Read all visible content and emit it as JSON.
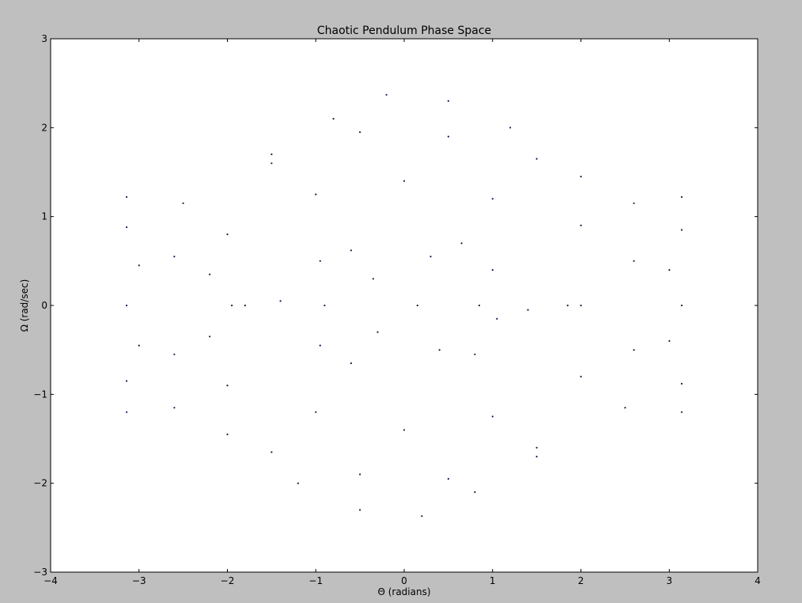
{
  "chart_data": {
    "type": "scatter",
    "title": "Chaotic Pendulum Phase Space",
    "xlabel": "Θ (radians)",
    "ylabel": "Ω (rad/sec)",
    "xlim": [
      -4,
      4
    ],
    "ylim": [
      -3,
      3
    ],
    "x_ticks": [
      -4,
      -3,
      -2,
      -1,
      0,
      1,
      2,
      3,
      4
    ],
    "y_ticks": [
      -3,
      -2,
      -1,
      0,
      1,
      2,
      3
    ],
    "x_tick_labels": [
      "−4",
      "−3",
      "−2",
      "−1",
      "0",
      "1",
      "2",
      "3",
      "4"
    ],
    "y_tick_labels": [
      "−3",
      "−2",
      "−1",
      "0",
      "1",
      "2",
      "3"
    ],
    "grid": false,
    "legend": "none",
    "series": [
      {
        "marker_color": "#1a1a4a",
        "x_range": [
          -3.1416,
          3.1416
        ],
        "y_range": [
          -2.37,
          2.37
        ],
        "points": [
          [
            -3.14,
            0.0
          ],
          [
            -3.0,
            0.45
          ],
          [
            -2.6,
            0.55
          ],
          [
            -2.2,
            0.35
          ],
          [
            -1.95,
            0.0
          ],
          [
            -2.2,
            -0.35
          ],
          [
            -2.6,
            -0.55
          ],
          [
            -3.0,
            -0.45
          ],
          [
            -3.14,
            0.88
          ],
          [
            -2.5,
            1.15
          ],
          [
            -1.5,
            1.6
          ],
          [
            -0.8,
            2.1
          ],
          [
            -0.2,
            2.37
          ],
          [
            0.5,
            2.3
          ],
          [
            1.2,
            2.0
          ],
          [
            2.0,
            1.45
          ],
          [
            2.6,
            1.15
          ],
          [
            3.14,
            0.85
          ],
          [
            -3.14,
            -0.85
          ],
          [
            -2.6,
            -1.15
          ],
          [
            -2.0,
            -1.45
          ],
          [
            -1.2,
            -2.0
          ],
          [
            -0.5,
            -2.3
          ],
          [
            0.2,
            -2.37
          ],
          [
            0.8,
            -2.1
          ],
          [
            1.5,
            -1.6
          ],
          [
            2.5,
            -1.15
          ],
          [
            3.14,
            -0.88
          ],
          [
            -3.14,
            1.22
          ],
          [
            3.14,
            1.22
          ],
          [
            -3.14,
            -1.2
          ],
          [
            3.14,
            -1.2
          ],
          [
            -0.9,
            0.0
          ],
          [
            -0.95,
            0.5
          ],
          [
            -0.6,
            0.62
          ],
          [
            -0.35,
            0.3
          ],
          [
            -0.3,
            -0.3
          ],
          [
            -0.6,
            -0.65
          ],
          [
            -0.95,
            -0.45
          ],
          [
            0.65,
            0.7
          ],
          [
            1.0,
            0.4
          ],
          [
            1.05,
            -0.15
          ],
          [
            0.8,
            -0.55
          ],
          [
            0.4,
            -0.5
          ],
          [
            0.15,
            0.0
          ],
          [
            0.3,
            0.55
          ],
          [
            0.85,
            0.0
          ],
          [
            -2.0,
            0.8
          ],
          [
            -1.0,
            1.25
          ],
          [
            0.0,
            1.4
          ],
          [
            1.0,
            1.2
          ],
          [
            2.0,
            0.9
          ],
          [
            -2.0,
            -0.9
          ],
          [
            -1.0,
            -1.2
          ],
          [
            0.0,
            -1.4
          ],
          [
            1.0,
            -1.25
          ],
          [
            2.0,
            -0.8
          ],
          [
            -1.8,
            0.0
          ],
          [
            -1.4,
            0.05
          ],
          [
            1.4,
            -0.05
          ],
          [
            1.85,
            0.0
          ],
          [
            2.0,
            0.0
          ],
          [
            2.6,
            0.5
          ],
          [
            3.0,
            0.4
          ],
          [
            2.6,
            -0.5
          ],
          [
            3.0,
            -0.4
          ],
          [
            3.14,
            0.0
          ],
          [
            -1.5,
            -1.65
          ],
          [
            -0.5,
            -1.9
          ],
          [
            0.5,
            -1.95
          ],
          [
            1.5,
            -1.7
          ],
          [
            -1.5,
            1.7
          ],
          [
            -0.5,
            1.95
          ],
          [
            0.5,
            1.9
          ],
          [
            1.5,
            1.65
          ]
        ]
      }
    ]
  }
}
